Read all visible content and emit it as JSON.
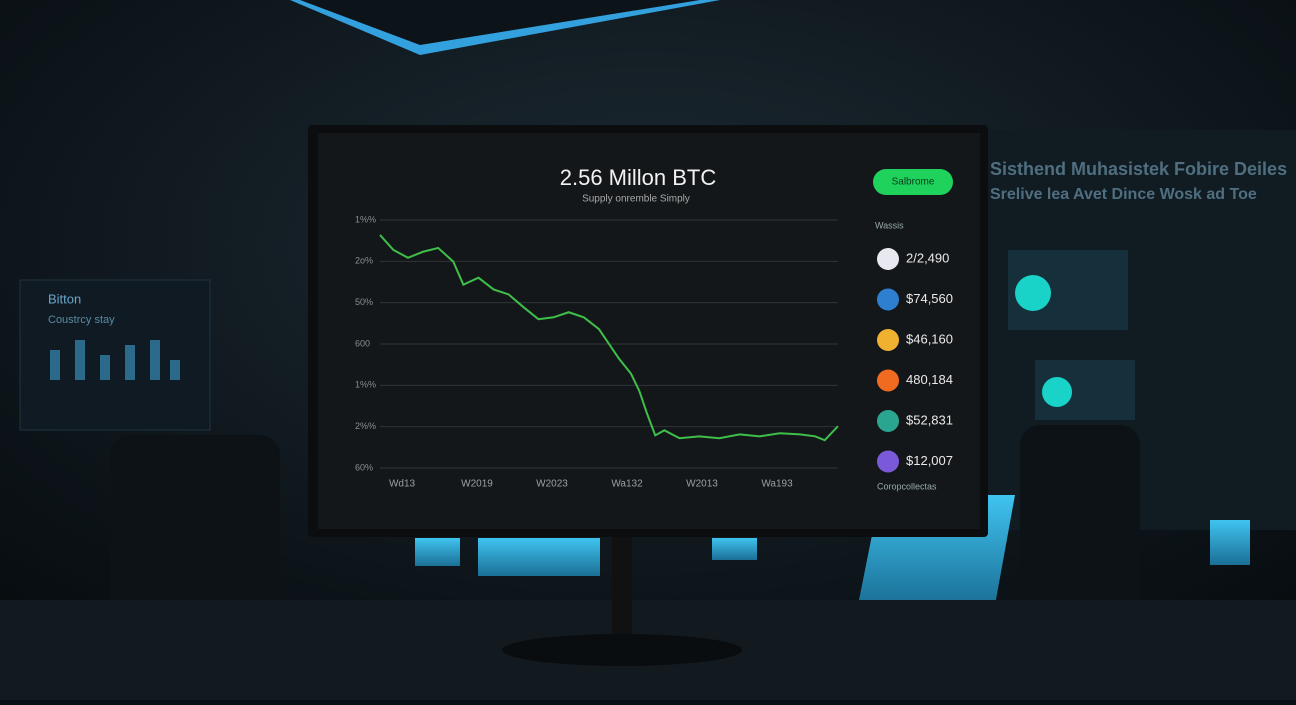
{
  "screen": {
    "title": "2.56 Millon BTC",
    "subtitle": "Supply onremble Simply",
    "button": "Salbrome",
    "y_labels": [
      "1%%",
      "2o%",
      "50%",
      "600",
      "1%%",
      "2%%",
      "60%"
    ],
    "x_labels": [
      "Wd13",
      "W2019",
      "W2023",
      "Wa132",
      "W2013",
      "Wa193"
    ],
    "chart": {
      "color": "#3fbf4a",
      "xlim": [
        0,
        100
      ],
      "ylim": [
        0,
        100
      ],
      "x": [
        0,
        2.9,
        6.1,
        9.4,
        12.7,
        16,
        18.2,
        21.5,
        24.8,
        28.1,
        31.4,
        34.6,
        37.9,
        41.2,
        44.5,
        47.8,
        50,
        52.2,
        54.8,
        56.6,
        58.3,
        60.1,
        62.1,
        65.4,
        69.7,
        74.1,
        78.5,
        82.9,
        87.3,
        91.7,
        95,
        97.1,
        100
      ],
      "values": [
        97.1,
        90.9,
        87.6,
        90.1,
        91.7,
        86,
        76.4,
        79.3,
        74.4,
        72.3,
        66.9,
        62,
        62.8,
        64.9,
        62.8,
        57.9,
        51.7,
        45.5,
        39.3,
        32.2,
        22.7,
        13.6,
        15.7,
        12.4,
        13.2,
        12.4,
        14,
        13.2,
        14.5,
        14,
        13.2,
        11.6,
        17.4
      ]
    },
    "list_header": "Wassis",
    "assets": [
      "2/2,490",
      "$74,560",
      "$46,160",
      "480,184",
      "$52,831",
      "$12,007"
    ],
    "footer": "Coropcollectas"
  },
  "background": {
    "left_title": "Bitton",
    "left_subtitle": "Coustrcy stay",
    "right_header": "Sisthend Muhasistek Fobire Deiles",
    "right_sub": "Srelive lea Avet Dince  Wosk ad Toe"
  }
}
